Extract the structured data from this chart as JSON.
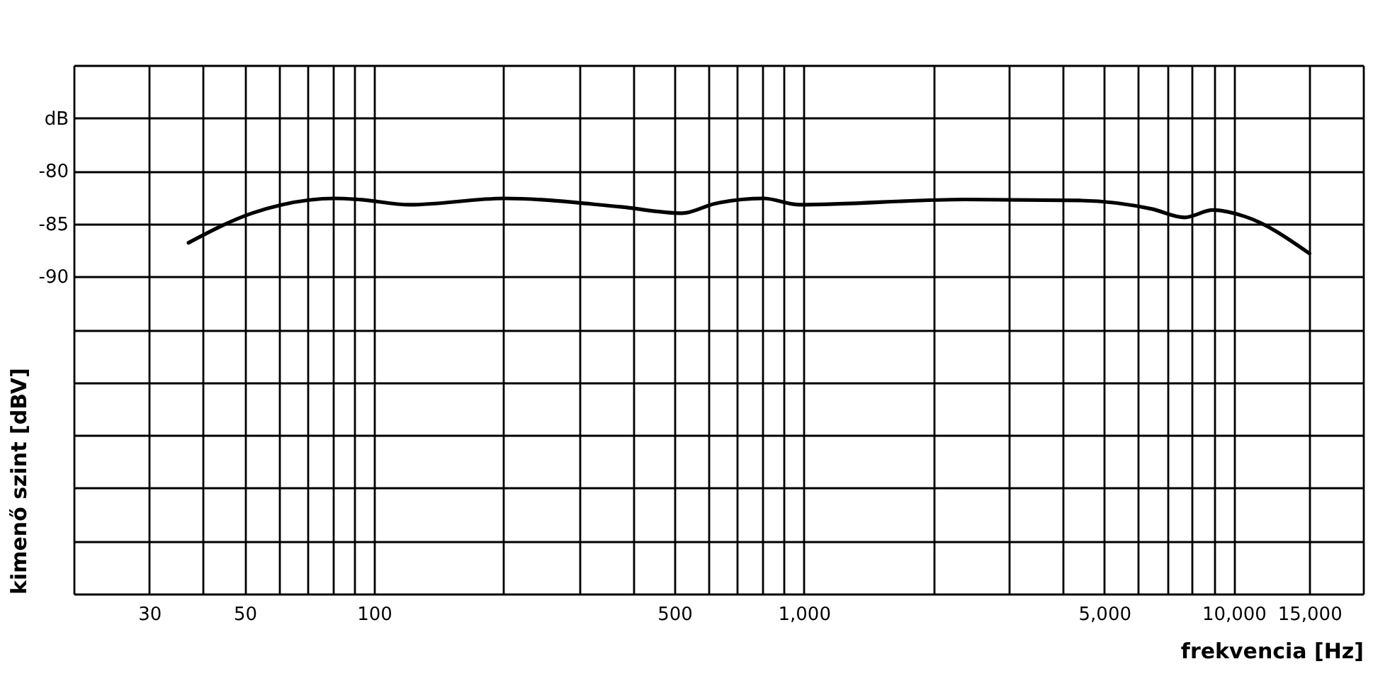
{
  "chart_data": {
    "type": "line",
    "xlabel": "frekvencia [Hz]",
    "ylabel": "kimenő szint [dBV]",
    "log": "x",
    "grid": true,
    "marker": "none",
    "line_style": "solid",
    "xlim": [
      20,
      20000
    ],
    "ylim": [
      -120,
      -70
    ],
    "xticks": [
      {
        "value": 20,
        "label": null
      },
      30,
      {
        "value": 40,
        "label": null
      },
      50,
      {
        "value": 60,
        "label": null
      },
      {
        "value": 70,
        "label": null
      },
      {
        "value": 80,
        "label": null
      },
      {
        "value": 90,
        "label": null
      },
      100,
      {
        "value": 200,
        "label": null
      },
      {
        "value": 300,
        "label": null
      },
      {
        "value": 400,
        "label": null
      },
      500,
      {
        "value": 600,
        "label": null
      },
      {
        "value": 700,
        "label": null
      },
      {
        "value": 800,
        "label": null
      },
      {
        "value": 900,
        "label": null
      },
      {
        "value": 1000,
        "label": "1,000"
      },
      {
        "value": 2000,
        "label": null
      },
      {
        "value": 3000,
        "label": null
      },
      {
        "value": 4000,
        "label": null
      },
      {
        "value": 5000,
        "label": "5,000"
      },
      {
        "value": 6000,
        "label": null
      },
      {
        "value": 7000,
        "label": null
      },
      {
        "value": 8000,
        "label": null
      },
      {
        "value": 9000,
        "label": null
      },
      {
        "value": 10000,
        "label": "10,000"
      },
      {
        "value": 15000,
        "label": "15,000"
      },
      {
        "value": 20000,
        "label": null
      }
    ],
    "yticks": [
      {
        "value": -120,
        "label": null
      },
      {
        "value": -115,
        "label": null
      },
      {
        "value": -110,
        "label": null
      },
      {
        "value": -105,
        "label": null
      },
      {
        "value": -100,
        "label": null
      },
      {
        "value": -95,
        "label": null
      },
      -90,
      -85,
      -80,
      {
        "value": -75,
        "label": "dB"
      },
      {
        "value": -70,
        "label": null
      }
    ],
    "series": [
      {
        "color": "#000000",
        "x": [
          37,
          52,
          61,
          81,
          92,
          121,
          201,
          374,
          521,
          620,
          805,
          977,
          2370,
          4420,
          6450,
          7690,
          8940,
          10600,
          15000
        ],
        "values": [
          -86.8,
          -84.0,
          -83.2,
          -82.6,
          -82.7,
          -83.2,
          -82.6,
          -83.4,
          -84.0,
          -83.1,
          -82.6,
          -83.2,
          -82.7,
          -82.8,
          -83.6,
          -84.4,
          -83.7,
          -84.3,
          -87.8
        ]
      }
    ]
  }
}
